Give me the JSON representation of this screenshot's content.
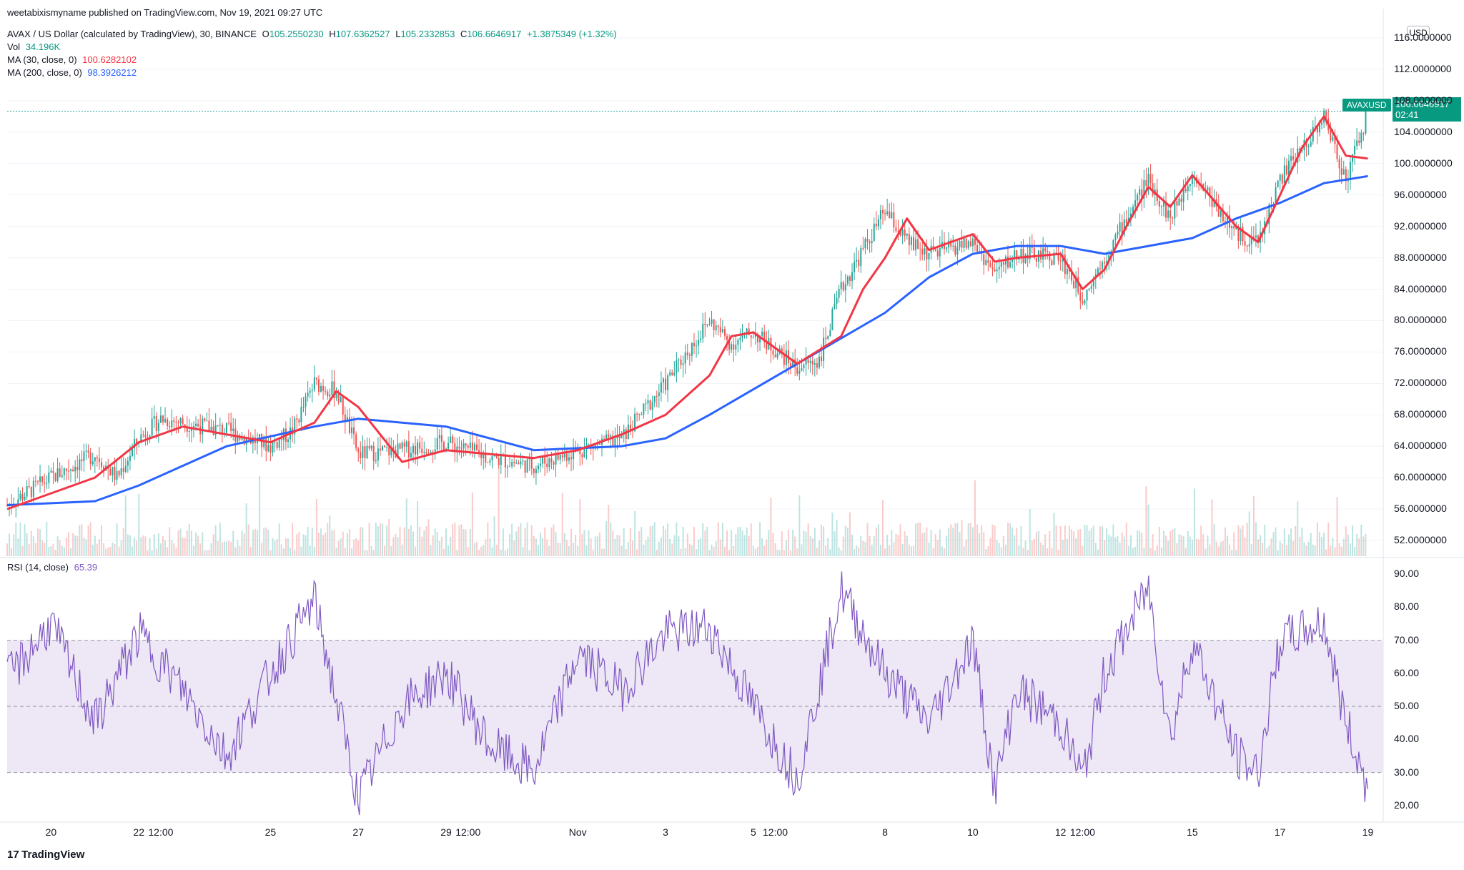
{
  "published_line": "weetabixismyname published on TradingView.com, Nov 19, 2021 09:27 UTC",
  "symbol_line": {
    "name": "AVAX / US Dollar (calculated by TradingView), 30, BINANCE",
    "o_label": "O",
    "o": "105.2550230",
    "h_label": "H",
    "h": "107.6362527",
    "l_label": "L",
    "l": "105.2332853",
    "c_label": "C",
    "c": "106.6646917",
    "change": "+1.3875349 (+1.32%)"
  },
  "vol": {
    "label": "Vol",
    "value": "34.196K"
  },
  "ma30": {
    "label": "MA (30, close, 0)",
    "value": "100.6282102",
    "color": "#f23645"
  },
  "ma200": {
    "label": "MA (200, close, 0)",
    "value": "98.3926212",
    "color": "#2962ff"
  },
  "rsi": {
    "label": "RSI (14, close)",
    "value": "65.39",
    "color": "#7e57c2"
  },
  "currency_badge": "USD",
  "last_price": {
    "symbol": "AVAXUSD",
    "value": "106.6646917",
    "countdown": "02:41"
  },
  "price_ticks": [
    "116.0000000",
    "112.0000000",
    "108.0000000",
    "104.0000000",
    "100.0000000",
    "96.0000000",
    "92.0000000",
    "88.0000000",
    "84.0000000",
    "80.0000000",
    "76.0000000",
    "72.0000000",
    "68.0000000",
    "64.0000000",
    "60.0000000",
    "56.0000000",
    "52.0000000"
  ],
  "rsi_ticks": [
    "90.00",
    "80.00",
    "70.00",
    "60.00",
    "50.00",
    "40.00",
    "30.00",
    "20.00"
  ],
  "date_ticks": [
    "20",
    "22",
    "12:00",
    "25",
    "27",
    "29",
    "12:00",
    "Nov",
    "3",
    "5",
    "12:00",
    "8",
    "10",
    "12",
    "12:00",
    "15",
    "17",
    "19"
  ],
  "brand": "TradingView",
  "chart_data": {
    "type": "candlestick",
    "interval": "30",
    "price_range": [
      50,
      117
    ],
    "rsi_range": [
      15,
      95
    ],
    "rsi_levels": [
      70,
      50,
      30
    ],
    "colors": {
      "up": "#26a69a",
      "down": "#ef5350",
      "ma30": "#f23645",
      "ma200": "#2962ff",
      "rsi": "#7e57c2",
      "rsi_band": "#ede7f6"
    },
    "close_path": [
      {
        "d": "Oct 19",
        "c": 56.5
      },
      {
        "d": "Oct 20",
        "c": 60
      },
      {
        "d": "Oct 21",
        "c": 63
      },
      {
        "d": "Oct 21 12:00",
        "c": 60
      },
      {
        "d": "Oct 22",
        "c": 65
      },
      {
        "d": "Oct 22 12:00",
        "c": 67.5
      },
      {
        "d": "Oct 23",
        "c": 67
      },
      {
        "d": "Oct 24",
        "c": 66
      },
      {
        "d": "Oct 25",
        "c": 64
      },
      {
        "d": "Oct 25 12:00",
        "c": 66
      },
      {
        "d": "Oct 26",
        "c": 72
      },
      {
        "d": "Oct 26 12:00",
        "c": 71
      },
      {
        "d": "Oct 27",
        "c": 63
      },
      {
        "d": "Oct 28",
        "c": 63.5
      },
      {
        "d": "Oct 29",
        "c": 64.5
      },
      {
        "d": "Oct 30",
        "c": 62.5
      },
      {
        "d": "Oct 31",
        "c": 61.5
      },
      {
        "d": "Nov 1",
        "c": 63.5
      },
      {
        "d": "Nov 2",
        "c": 65
      },
      {
        "d": "Nov 3",
        "c": 72
      },
      {
        "d": "Nov 4",
        "c": 80
      },
      {
        "d": "Nov 4 12:00",
        "c": 77
      },
      {
        "d": "Nov 5",
        "c": 78.5
      },
      {
        "d": "Nov 6",
        "c": 74
      },
      {
        "d": "Nov 6 12:00",
        "c": 75
      },
      {
        "d": "Nov 7",
        "c": 84
      },
      {
        "d": "Nov 8",
        "c": 94
      },
      {
        "d": "Nov 8 12:00",
        "c": 90
      },
      {
        "d": "Nov 9",
        "c": 88.5
      },
      {
        "d": "Nov 10",
        "c": 90
      },
      {
        "d": "Nov 10 12:00",
        "c": 86
      },
      {
        "d": "Nov 11",
        "c": 88.5
      },
      {
        "d": "Nov 12",
        "c": 88
      },
      {
        "d": "Nov 12 12:00",
        "c": 83
      },
      {
        "d": "Nov 13",
        "c": 88
      },
      {
        "d": "Nov 14",
        "c": 98
      },
      {
        "d": "Nov 14 12:00",
        "c": 93
      },
      {
        "d": "Nov 15",
        "c": 99
      },
      {
        "d": "Nov 16",
        "c": 91
      },
      {
        "d": "Nov 16 12:00",
        "c": 90
      },
      {
        "d": "Nov 17",
        "c": 98
      },
      {
        "d": "Nov 18",
        "c": 106
      },
      {
        "d": "Nov 18 12:00",
        "c": 98
      },
      {
        "d": "Nov 19",
        "c": 106.66
      }
    ],
    "ma30_path": [
      {
        "d": "Oct 19",
        "v": 56
      },
      {
        "d": "Oct 21",
        "v": 60
      },
      {
        "d": "Oct 22",
        "v": 64.5
      },
      {
        "d": "Oct 23",
        "v": 66.5
      },
      {
        "d": "Oct 25",
        "v": 64.5
      },
      {
        "d": "Oct 26",
        "v": 67
      },
      {
        "d": "Oct 26 12:00",
        "v": 71
      },
      {
        "d": "Oct 27",
        "v": 69
      },
      {
        "d": "Oct 28",
        "v": 62
      },
      {
        "d": "Oct 29",
        "v": 63.5
      },
      {
        "d": "Oct 30",
        "v": 63
      },
      {
        "d": "Oct 31",
        "v": 62.5
      },
      {
        "d": "Nov 1",
        "v": 63.5
      },
      {
        "d": "Nov 2",
        "v": 65.5
      },
      {
        "d": "Nov 3",
        "v": 68
      },
      {
        "d": "Nov 4",
        "v": 73
      },
      {
        "d": "Nov 4 12:00",
        "v": 78
      },
      {
        "d": "Nov 5",
        "v": 78.5
      },
      {
        "d": "Nov 6",
        "v": 74.5
      },
      {
        "d": "Nov 7",
        "v": 78
      },
      {
        "d": "Nov 7 12:00",
        "v": 84
      },
      {
        "d": "Nov 8",
        "v": 88
      },
      {
        "d": "Nov 8 12:00",
        "v": 93
      },
      {
        "d": "Nov 9",
        "v": 89
      },
      {
        "d": "Nov 10",
        "v": 91
      },
      {
        "d": "Nov 10 12:00",
        "v": 87.5
      },
      {
        "d": "Nov 11",
        "v": 88
      },
      {
        "d": "Nov 12",
        "v": 88.5
      },
      {
        "d": "Nov 12 12:00",
        "v": 84
      },
      {
        "d": "Nov 13",
        "v": 86.5
      },
      {
        "d": "Nov 13 12:00",
        "v": 92
      },
      {
        "d": "Nov 14",
        "v": 97
      },
      {
        "d": "Nov 14 12:00",
        "v": 94.5
      },
      {
        "d": "Nov 15",
        "v": 98.5
      },
      {
        "d": "Nov 16",
        "v": 92
      },
      {
        "d": "Nov 16 12:00",
        "v": 90
      },
      {
        "d": "Nov 17",
        "v": 96
      },
      {
        "d": "Nov 17 12:00",
        "v": 102
      },
      {
        "d": "Nov 18",
        "v": 106
      },
      {
        "d": "Nov 18 12:00",
        "v": 101
      },
      {
        "d": "Nov 19",
        "v": 100.63
      }
    ],
    "ma200_path": [
      {
        "d": "Oct 19",
        "v": 56.5
      },
      {
        "d": "Oct 21",
        "v": 57
      },
      {
        "d": "Oct 22",
        "v": 59
      },
      {
        "d": "Oct 24",
        "v": 64
      },
      {
        "d": "Oct 26",
        "v": 66.5
      },
      {
        "d": "Oct 27",
        "v": 67.5
      },
      {
        "d": "Oct 29",
        "v": 66.5
      },
      {
        "d": "Oct 31",
        "v": 63.5
      },
      {
        "d": "Nov 2",
        "v": 64
      },
      {
        "d": "Nov 3",
        "v": 65
      },
      {
        "d": "Nov 4",
        "v": 68
      },
      {
        "d": "Nov 6",
        "v": 74.5
      },
      {
        "d": "Nov 8",
        "v": 81
      },
      {
        "d": "Nov 9",
        "v": 85.5
      },
      {
        "d": "Nov 10",
        "v": 88.5
      },
      {
        "d": "Nov 11",
        "v": 89.5
      },
      {
        "d": "Nov 12",
        "v": 89.5
      },
      {
        "d": "Nov 13",
        "v": 88.5
      },
      {
        "d": "Nov 14",
        "v": 89.5
      },
      {
        "d": "Nov 15",
        "v": 90.5
      },
      {
        "d": "Nov 16",
        "v": 93
      },
      {
        "d": "Nov 17",
        "v": 95
      },
      {
        "d": "Nov 18",
        "v": 97.5
      },
      {
        "d": "Nov 19",
        "v": 98.39
      }
    ],
    "rsi_path": [
      {
        "d": "Oct 19",
        "v": 58
      },
      {
        "d": "Oct 20",
        "v": 75
      },
      {
        "d": "Oct 21",
        "v": 45
      },
      {
        "d": "Oct 22",
        "v": 72
      },
      {
        "d": "Oct 23",
        "v": 55
      },
      {
        "d": "Oct 24",
        "v": 35
      },
      {
        "d": "Oct 25",
        "v": 60
      },
      {
        "d": "Oct 26",
        "v": 82
      },
      {
        "d": "Oct 27",
        "v": 22
      },
      {
        "d": "Oct 28",
        "v": 50
      },
      {
        "d": "Oct 29",
        "v": 60
      },
      {
        "d": "Oct 30",
        "v": 38
      },
      {
        "d": "Oct 31",
        "v": 30
      },
      {
        "d": "Nov 1",
        "v": 66
      },
      {
        "d": "Nov 2",
        "v": 55
      },
      {
        "d": "Nov 3",
        "v": 72
      },
      {
        "d": "Nov 4",
        "v": 74
      },
      {
        "d": "Nov 5",
        "v": 50
      },
      {
        "d": "Nov 6",
        "v": 28
      },
      {
        "d": "Nov 7",
        "v": 85
      },
      {
        "d": "Nov 8",
        "v": 60
      },
      {
        "d": "Nov 9",
        "v": 45
      },
      {
        "d": "Nov 10",
        "v": 70
      },
      {
        "d": "Nov 10 12:00",
        "v": 25
      },
      {
        "d": "Nov 11",
        "v": 55
      },
      {
        "d": "Nov 12",
        "v": 45
      },
      {
        "d": "Nov 12 12:00",
        "v": 28
      },
      {
        "d": "Nov 13",
        "v": 60
      },
      {
        "d": "Nov 14",
        "v": 86
      },
      {
        "d": "Nov 14 12:00",
        "v": 40
      },
      {
        "d": "Nov 15",
        "v": 70
      },
      {
        "d": "Nov 16",
        "v": 35
      },
      {
        "d": "Nov 16 12:00",
        "v": 30
      },
      {
        "d": "Nov 17",
        "v": 70
      },
      {
        "d": "Nov 18",
        "v": 75
      },
      {
        "d": "Nov 18 12:00",
        "v": 45
      },
      {
        "d": "Nov 19 0:00",
        "v": 25
      },
      {
        "d": "Nov 19",
        "v": 65.39
      }
    ]
  }
}
